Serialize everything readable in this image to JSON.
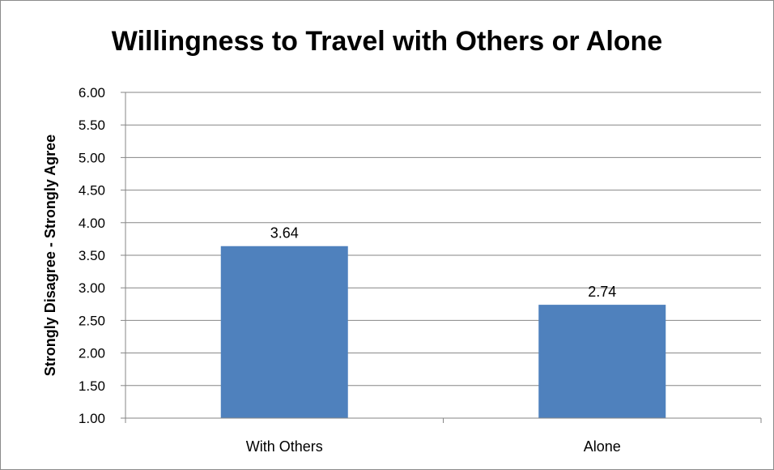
{
  "chart_data": {
    "type": "bar",
    "title": "Willingness to Travel with Others or Alone",
    "xlabel": "",
    "ylabel": "Strongly Disagree - Strongly Agree",
    "categories": [
      "With Others",
      "Alone"
    ],
    "values": [
      3.64,
      2.74
    ],
    "value_labels": [
      "3.64",
      "2.74"
    ],
    "ylim": [
      1.0,
      6.0
    ],
    "y_ticks": [
      1.0,
      1.5,
      2.0,
      2.5,
      3.0,
      3.5,
      4.0,
      4.5,
      5.0,
      5.5,
      6.0
    ],
    "y_tick_labels": [
      "1.00",
      "1.50",
      "2.00",
      "2.50",
      "3.00",
      "3.50",
      "4.00",
      "4.50",
      "5.00",
      "5.50",
      "6.00"
    ],
    "grid": true,
    "legend": "none",
    "colors": {
      "bar": "#4f81bd",
      "grid": "#868686",
      "axis": "#868686"
    }
  }
}
